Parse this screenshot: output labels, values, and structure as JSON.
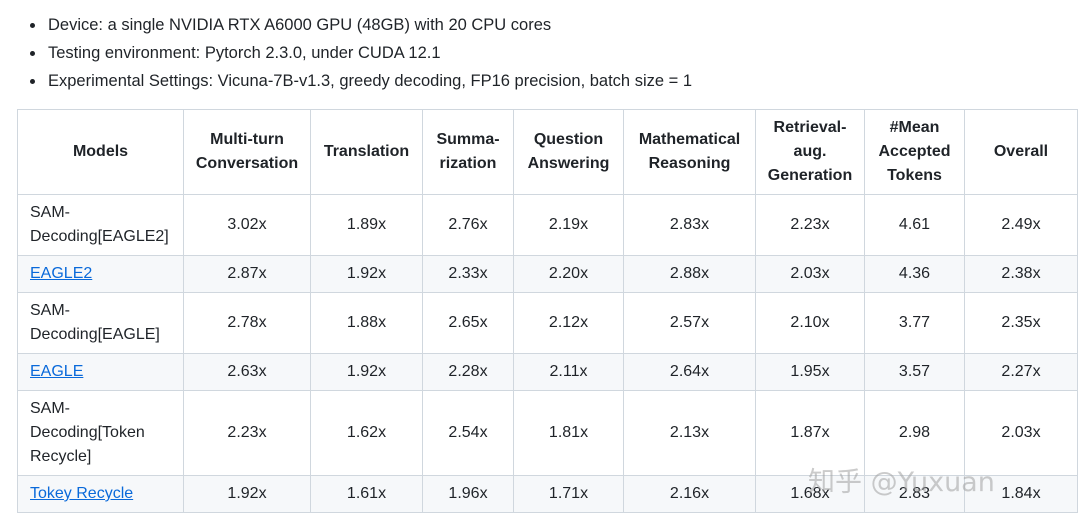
{
  "bullets": [
    "Device: a single NVIDIA RTX A6000 GPU (48GB) with 20 CPU cores",
    "Testing environment: Pytorch 2.3.0, under CUDA 12.1",
    "Experimental Settings: Vicuna-7B-v1.3, greedy decoding, FP16 precision, batch size = 1"
  ],
  "table": {
    "headers": [
      [
        "Models"
      ],
      [
        "Multi-turn",
        "Conversation"
      ],
      [
        "Translation"
      ],
      [
        "Summa-",
        "rization"
      ],
      [
        "Question",
        "Answering"
      ],
      [
        "Mathematical",
        "Reasoning"
      ],
      [
        "Retrieval-",
        "aug.",
        "Generation"
      ],
      [
        "#Mean",
        "Accepted",
        "Tokens"
      ],
      [
        "Overall"
      ]
    ],
    "rows": [
      {
        "model": [
          "SAM-",
          "Decoding[EAGLE2]"
        ],
        "link": false,
        "values": [
          "3.02x",
          "1.89x",
          "2.76x",
          "2.19x",
          "2.83x",
          "2.23x",
          "4.61",
          "2.49x"
        ]
      },
      {
        "model": [
          "EAGLE2"
        ],
        "link": true,
        "values": [
          "2.87x",
          "1.92x",
          "2.33x",
          "2.20x",
          "2.88x",
          "2.03x",
          "4.36",
          "2.38x"
        ]
      },
      {
        "model": [
          "SAM-",
          "Decoding[EAGLE]"
        ],
        "link": false,
        "values": [
          "2.78x",
          "1.88x",
          "2.65x",
          "2.12x",
          "2.57x",
          "2.10x",
          "3.77",
          "2.35x"
        ]
      },
      {
        "model": [
          "EAGLE"
        ],
        "link": true,
        "values": [
          "2.63x",
          "1.92x",
          "2.28x",
          "2.11x",
          "2.64x",
          "1.95x",
          "3.57",
          "2.27x"
        ]
      },
      {
        "model": [
          "SAM-",
          "Decoding[Token",
          "Recycle]"
        ],
        "link": false,
        "values": [
          "2.23x",
          "1.62x",
          "2.54x",
          "1.81x",
          "2.13x",
          "1.87x",
          "2.98",
          "2.03x"
        ]
      },
      {
        "model": [
          "Tokey Recycle"
        ],
        "link": true,
        "values": [
          "1.92x",
          "1.61x",
          "1.96x",
          "1.71x",
          "2.16x",
          "1.68x",
          "2.83",
          "1.84x"
        ]
      }
    ]
  },
  "watermark": "知乎 @Yuxuan"
}
